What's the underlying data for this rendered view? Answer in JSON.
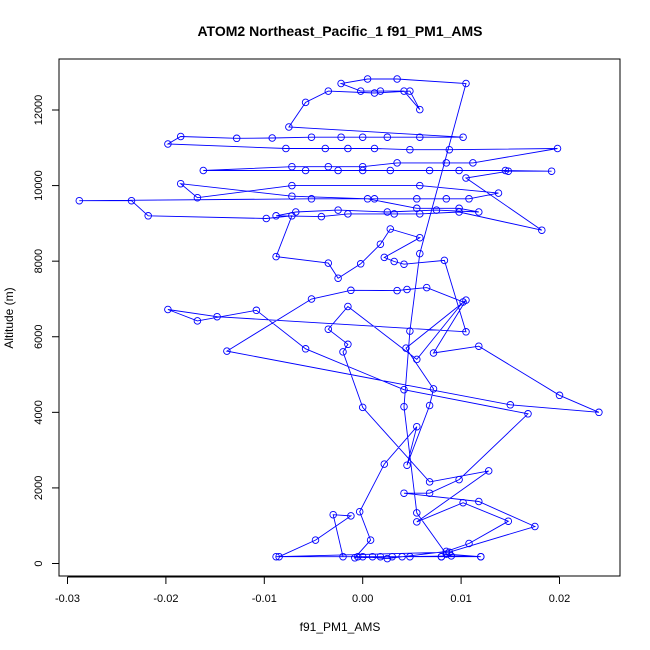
{
  "chart_data": {
    "type": "scatter",
    "title": "ATOM2 Northeast_Pacific_1 f91_PM1_AMS",
    "xlabel": "f91_PM1_AMS",
    "ylabel": "Altitude (m)",
    "xlim": [
      -0.03,
      0.025
    ],
    "ylim": [
      0,
      13000
    ],
    "x_ticks": [
      -0.03,
      -0.02,
      -0.01,
      0.0,
      0.01,
      0.02
    ],
    "x_tick_labels": [
      "-0.03",
      "-0.02",
      "-0.01",
      "0.00",
      "0.01",
      "0.02"
    ],
    "y_ticks": [
      0,
      2000,
      4000,
      6000,
      8000,
      10000,
      12000
    ],
    "y_tick_labels": [
      "0",
      "2000",
      "4000",
      "6000",
      "8000",
      "10000",
      "12000"
    ],
    "grid": false,
    "legend": "none",
    "series_color": "#0000ff",
    "marker": "open-circle",
    "connected": true,
    "series": [
      {
        "points": [
          [
            -0.0085,
            180
          ],
          [
            -0.0048,
            620
          ],
          [
            -0.0012,
            1260
          ],
          [
            -0.003,
            1290
          ],
          [
            -0.002,
            180
          ],
          [
            0.001,
            180
          ],
          [
            0.003,
            180
          ],
          [
            0.008,
            180
          ],
          [
            0.012,
            180
          ],
          [
            0.009,
            200
          ],
          [
            0.004,
            180
          ],
          [
            -0.0008,
            150
          ],
          [
            0.0008,
            620
          ],
          [
            -0.0003,
            1370
          ],
          [
            0.0022,
            2630
          ],
          [
            0.0055,
            3620
          ],
          [
            0.0045,
            2600
          ],
          [
            0.0068,
            4180
          ],
          [
            0.0072,
            4620
          ],
          [
            0.0044,
            5700
          ],
          [
            0.0105,
            6970
          ],
          [
            0.0072,
            5570
          ],
          [
            0.0118,
            5750
          ],
          [
            0.02,
            4450
          ],
          [
            0.024,
            4000
          ],
          [
            0.015,
            4200
          ],
          [
            -0.0138,
            5620
          ],
          [
            -0.0052,
            7000
          ],
          [
            -0.0012,
            7230
          ],
          [
            0.0035,
            7220
          ],
          [
            0.0045,
            7250
          ],
          [
            0.0065,
            7300
          ],
          [
            0.0102,
            6920
          ],
          [
            0.0055,
            5400
          ],
          [
            -0.0015,
            6800
          ],
          [
            -0.0035,
            6200
          ],
          [
            -0.0015,
            5800
          ],
          [
            -0.002,
            5600
          ],
          [
            0.0,
            4130
          ],
          [
            0.0068,
            2160
          ],
          [
            0.0128,
            2450
          ],
          [
            0.0055,
            1100
          ],
          [
            0.0102,
            1610
          ],
          [
            0.0148,
            1120
          ],
          [
            0.0108,
            530
          ],
          [
            0.0085,
            320
          ],
          [
            0.0025,
            130
          ],
          [
            0.0,
            180
          ],
          [
            -0.0088,
            180
          ],
          [
            0.0088,
            300
          ],
          [
            0.0175,
            980
          ],
          [
            0.0118,
            1640
          ],
          [
            0.0042,
            1860
          ],
          [
            0.0068,
            1860
          ],
          [
            0.0098,
            2220
          ],
          [
            0.0168,
            3960
          ],
          [
            0.0042,
            4600
          ],
          [
            -0.0058,
            5680
          ],
          [
            -0.0108,
            6700
          ],
          [
            -0.0168,
            6420
          ],
          [
            -0.0198,
            6720
          ],
          [
            -0.0148,
            6530
          ],
          [
            0.0105,
            6130
          ],
          [
            0.0083,
            8020
          ],
          [
            0.0042,
            7920
          ],
          [
            0.0032,
            7990
          ],
          [
            0.0022,
            8100
          ],
          [
            0.0058,
            8620
          ],
          [
            0.0028,
            8850
          ],
          [
            0.0018,
            8450
          ],
          [
            -0.0002,
            7930
          ],
          [
            -0.0025,
            7550
          ],
          [
            -0.0035,
            7950
          ],
          [
            -0.0088,
            8120
          ],
          [
            -0.0072,
            9200
          ],
          [
            -0.0098,
            9130
          ],
          [
            -0.0218,
            9200
          ],
          [
            -0.0235,
            9600
          ],
          [
            -0.0288,
            9600
          ],
          [
            -0.0052,
            9650
          ],
          [
            0.0012,
            9650
          ],
          [
            0.0055,
            9650
          ],
          [
            0.0085,
            9650
          ],
          [
            0.0108,
            9650
          ],
          [
            0.0138,
            9800
          ],
          [
            0.0058,
            10000
          ],
          [
            -0.0072,
            10000
          ],
          [
            -0.0168,
            9680
          ],
          [
            -0.0185,
            10050
          ],
          [
            -0.0072,
            9720
          ],
          [
            0.0005,
            9650
          ],
          [
            0.0055,
            9400
          ],
          [
            0.0098,
            9400
          ],
          [
            0.0118,
            9300
          ],
          [
            0.0075,
            9350
          ],
          [
            0.0025,
            9300
          ],
          [
            -0.0025,
            9350
          ],
          [
            -0.0068,
            9300
          ],
          [
            -0.0088,
            9200
          ],
          [
            -0.0042,
            9180
          ],
          [
            -0.0015,
            9250
          ],
          [
            0.0032,
            9250
          ],
          [
            0.0058,
            9250
          ],
          [
            0.0098,
            9300
          ],
          [
            0.0182,
            8820
          ],
          [
            0.0105,
            10200
          ],
          [
            0.0148,
            10380
          ],
          [
            0.0192,
            10380
          ],
          [
            0.0145,
            10400
          ],
          [
            0.0098,
            10400
          ],
          [
            0.0068,
            10400
          ],
          [
            0.0028,
            10400
          ],
          [
            0.0,
            10400
          ],
          [
            -0.0025,
            10400
          ],
          [
            -0.0058,
            10400
          ],
          [
            -0.0162,
            10400
          ],
          [
            -0.0072,
            10500
          ],
          [
            -0.0035,
            10500
          ],
          [
            0.0,
            10500
          ],
          [
            0.0035,
            10600
          ],
          [
            0.0085,
            10600
          ],
          [
            0.0112,
            10600
          ],
          [
            0.0198,
            10980
          ],
          [
            0.0088,
            10950
          ],
          [
            0.0048,
            10950
          ],
          [
            0.0012,
            10980
          ],
          [
            -0.0015,
            10980
          ],
          [
            -0.0038,
            10980
          ],
          [
            -0.0078,
            10980
          ],
          [
            -0.0198,
            11100
          ],
          [
            -0.0185,
            11300
          ],
          [
            -0.0128,
            11250
          ],
          [
            -0.0092,
            11260
          ],
          [
            -0.0052,
            11280
          ],
          [
            -0.0022,
            11280
          ],
          [
            0.0,
            11280
          ],
          [
            0.0025,
            11280
          ],
          [
            0.0058,
            11280
          ],
          [
            0.0102,
            11280
          ],
          [
            -0.0075,
            11550
          ],
          [
            -0.0058,
            12200
          ],
          [
            -0.0035,
            12500
          ],
          [
            0.0012,
            12450
          ],
          [
            0.0048,
            12500
          ],
          [
            0.0058,
            12010
          ],
          [
            0.0042,
            12500
          ],
          [
            0.0018,
            12500
          ],
          [
            -0.0002,
            12500
          ],
          [
            -0.0022,
            12700
          ],
          [
            0.0005,
            12820
          ],
          [
            0.0035,
            12820
          ],
          [
            0.0105,
            12700
          ],
          [
            0.0058,
            8200
          ],
          [
            0.0048,
            6150
          ],
          [
            0.0042,
            4150
          ],
          [
            0.0055,
            1340
          ],
          [
            0.0085,
            250
          ],
          [
            0.012,
            180
          ],
          [
            0.008,
            180
          ],
          [
            0.0048,
            180
          ],
          [
            0.0018,
            180
          ],
          [
            -0.0005,
            180
          ]
        ]
      }
    ]
  }
}
